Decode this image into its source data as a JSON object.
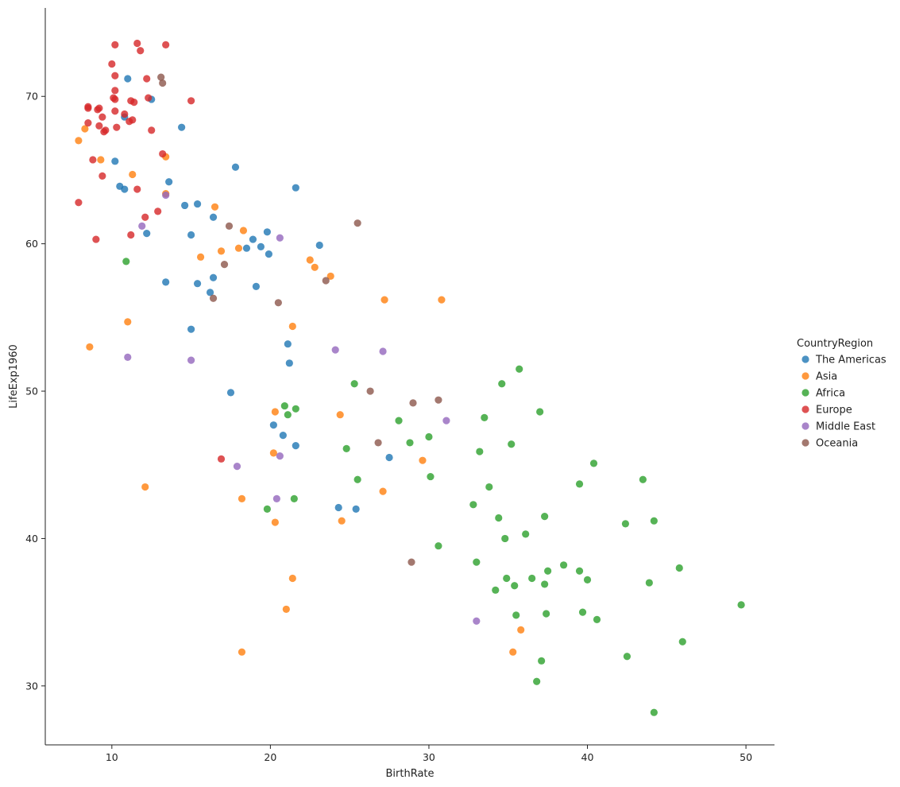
{
  "chart_data": {
    "type": "scatter",
    "title": "",
    "xlabel": "BirthRate",
    "ylabel": "LifeExp1960",
    "xlim": [
      5.8,
      51.8
    ],
    "ylim": [
      26.0,
      76.0
    ],
    "xticks": [
      10,
      20,
      30,
      40,
      50
    ],
    "yticks": [
      30,
      40,
      50,
      60,
      70
    ],
    "grid": false,
    "legend": {
      "title": "CountryRegion",
      "position": "right"
    },
    "series": [
      {
        "name": "The Americas",
        "color": "#1f77b4",
        "points": [
          [
            11.0,
            71.2
          ],
          [
            12.5,
            69.8
          ],
          [
            10.8,
            68.6
          ],
          [
            14.4,
            67.9
          ],
          [
            10.2,
            65.6
          ],
          [
            17.8,
            65.2
          ],
          [
            13.6,
            64.2
          ],
          [
            21.6,
            63.8
          ],
          [
            10.5,
            63.9
          ],
          [
            10.8,
            63.7
          ],
          [
            14.6,
            62.6
          ],
          [
            15.4,
            62.7
          ],
          [
            16.4,
            61.8
          ],
          [
            12.2,
            60.7
          ],
          [
            15.0,
            60.6
          ],
          [
            19.8,
            60.8
          ],
          [
            18.9,
            60.3
          ],
          [
            18.5,
            59.7
          ],
          [
            19.4,
            59.8
          ],
          [
            19.9,
            59.3
          ],
          [
            23.1,
            59.9
          ],
          [
            13.4,
            57.4
          ],
          [
            15.4,
            57.3
          ],
          [
            16.4,
            57.7
          ],
          [
            19.1,
            57.1
          ],
          [
            16.2,
            56.7
          ],
          [
            15.0,
            54.2
          ],
          [
            21.1,
            53.2
          ],
          [
            21.2,
            51.9
          ],
          [
            17.5,
            49.9
          ],
          [
            20.2,
            47.7
          ],
          [
            20.8,
            47.0
          ],
          [
            21.6,
            46.3
          ],
          [
            27.5,
            45.5
          ],
          [
            24.3,
            42.1
          ],
          [
            25.4,
            42.0
          ]
        ]
      },
      {
        "name": "Asia",
        "color": "#ff7f0e",
        "points": [
          [
            8.3,
            67.8
          ],
          [
            7.9,
            67.0
          ],
          [
            13.4,
            65.9
          ],
          [
            9.3,
            65.7
          ],
          [
            11.3,
            64.7
          ],
          [
            13.4,
            63.4
          ],
          [
            16.5,
            62.5
          ],
          [
            18.3,
            60.9
          ],
          [
            15.6,
            59.1
          ],
          [
            16.9,
            59.5
          ],
          [
            18.0,
            59.7
          ],
          [
            22.5,
            58.9
          ],
          [
            22.8,
            58.4
          ],
          [
            23.8,
            57.8
          ],
          [
            27.2,
            56.2
          ],
          [
            30.8,
            56.2
          ],
          [
            11.0,
            54.7
          ],
          [
            21.4,
            54.4
          ],
          [
            8.6,
            53.0
          ],
          [
            20.3,
            48.6
          ],
          [
            24.4,
            48.4
          ],
          [
            20.2,
            45.8
          ],
          [
            29.6,
            45.3
          ],
          [
            12.1,
            43.5
          ],
          [
            27.1,
            43.2
          ],
          [
            18.2,
            42.7
          ],
          [
            20.3,
            41.1
          ],
          [
            24.5,
            41.2
          ],
          [
            21.4,
            37.3
          ],
          [
            21.0,
            35.2
          ],
          [
            35.8,
            33.8
          ],
          [
            18.2,
            32.3
          ],
          [
            35.3,
            32.3
          ]
        ]
      },
      {
        "name": "Africa",
        "color": "#2ca02c",
        "points": [
          [
            10.9,
            58.8
          ],
          [
            25.3,
            50.5
          ],
          [
            35.7,
            51.5
          ],
          [
            34.6,
            50.5
          ],
          [
            37.0,
            48.6
          ],
          [
            20.9,
            49.0
          ],
          [
            21.1,
            48.4
          ],
          [
            21.6,
            48.8
          ],
          [
            28.1,
            48.0
          ],
          [
            33.5,
            48.2
          ],
          [
            28.8,
            46.5
          ],
          [
            30.0,
            46.9
          ],
          [
            24.8,
            46.1
          ],
          [
            35.2,
            46.4
          ],
          [
            33.2,
            45.9
          ],
          [
            40.4,
            45.1
          ],
          [
            25.5,
            44.0
          ],
          [
            30.1,
            44.2
          ],
          [
            33.8,
            43.5
          ],
          [
            39.5,
            43.7
          ],
          [
            43.5,
            44.0
          ],
          [
            19.8,
            42.0
          ],
          [
            21.5,
            42.7
          ],
          [
            32.8,
            42.3
          ],
          [
            34.4,
            41.4
          ],
          [
            37.3,
            41.5
          ],
          [
            36.1,
            40.3
          ],
          [
            34.8,
            40.0
          ],
          [
            42.4,
            41.0
          ],
          [
            44.2,
            41.2
          ],
          [
            30.6,
            39.5
          ],
          [
            33.0,
            38.4
          ],
          [
            34.9,
            37.3
          ],
          [
            36.5,
            37.3
          ],
          [
            37.5,
            37.8
          ],
          [
            38.5,
            38.2
          ],
          [
            39.5,
            37.8
          ],
          [
            40.0,
            37.2
          ],
          [
            45.8,
            38.0
          ],
          [
            34.2,
            36.5
          ],
          [
            35.4,
            36.8
          ],
          [
            37.3,
            36.9
          ],
          [
            43.9,
            37.0
          ],
          [
            35.5,
            34.8
          ],
          [
            37.4,
            34.9
          ],
          [
            39.7,
            35.0
          ],
          [
            40.6,
            34.5
          ],
          [
            49.7,
            35.5
          ],
          [
            46.0,
            33.0
          ],
          [
            42.5,
            32.0
          ],
          [
            37.1,
            31.7
          ],
          [
            36.8,
            30.3
          ],
          [
            44.2,
            28.2
          ]
        ]
      },
      {
        "name": "Europe",
        "color": "#d62728",
        "points": [
          [
            10.2,
            73.5
          ],
          [
            11.6,
            73.6
          ],
          [
            13.4,
            73.5
          ],
          [
            11.8,
            73.1
          ],
          [
            10.0,
            72.2
          ],
          [
            10.2,
            71.4
          ],
          [
            12.2,
            71.2
          ],
          [
            10.2,
            70.4
          ],
          [
            10.1,
            69.9
          ],
          [
            10.2,
            69.8
          ],
          [
            12.3,
            69.9
          ],
          [
            11.2,
            69.7
          ],
          [
            11.4,
            69.6
          ],
          [
            15.0,
            69.7
          ],
          [
            8.5,
            69.3
          ],
          [
            8.5,
            69.2
          ],
          [
            9.1,
            69.1
          ],
          [
            9.2,
            69.2
          ],
          [
            10.2,
            69.0
          ],
          [
            10.8,
            68.8
          ],
          [
            9.4,
            68.6
          ],
          [
            11.3,
            68.4
          ],
          [
            11.1,
            68.3
          ],
          [
            8.5,
            68.2
          ],
          [
            9.2,
            68.0
          ],
          [
            10.3,
            67.9
          ],
          [
            9.6,
            67.7
          ],
          [
            9.5,
            67.6
          ],
          [
            12.5,
            67.7
          ],
          [
            13.2,
            66.1
          ],
          [
            8.8,
            65.7
          ],
          [
            9.4,
            64.6
          ],
          [
            11.6,
            63.7
          ],
          [
            7.9,
            62.8
          ],
          [
            12.9,
            62.2
          ],
          [
            12.1,
            61.8
          ],
          [
            11.2,
            60.6
          ],
          [
            9.0,
            60.3
          ],
          [
            16.9,
            45.4
          ]
        ]
      },
      {
        "name": "Middle East",
        "color": "#9467bd",
        "points": [
          [
            13.4,
            63.3
          ],
          [
            11.9,
            61.2
          ],
          [
            20.6,
            60.4
          ],
          [
            11.0,
            52.3
          ],
          [
            15.0,
            52.1
          ],
          [
            24.1,
            52.8
          ],
          [
            27.1,
            52.7
          ],
          [
            31.1,
            48.0
          ],
          [
            20.6,
            45.6
          ],
          [
            17.9,
            44.9
          ],
          [
            20.4,
            42.7
          ],
          [
            33.0,
            34.4
          ]
        ]
      },
      {
        "name": "Oceania",
        "color": "#8c564b",
        "points": [
          [
            13.1,
            71.3
          ],
          [
            13.2,
            70.9
          ],
          [
            17.4,
            61.2
          ],
          [
            25.5,
            61.4
          ],
          [
            17.1,
            58.6
          ],
          [
            23.5,
            57.5
          ],
          [
            16.4,
            56.3
          ],
          [
            20.5,
            56.0
          ],
          [
            26.3,
            50.0
          ],
          [
            29.0,
            49.2
          ],
          [
            30.6,
            49.4
          ],
          [
            26.8,
            46.5
          ],
          [
            28.9,
            38.4
          ]
        ]
      }
    ]
  }
}
